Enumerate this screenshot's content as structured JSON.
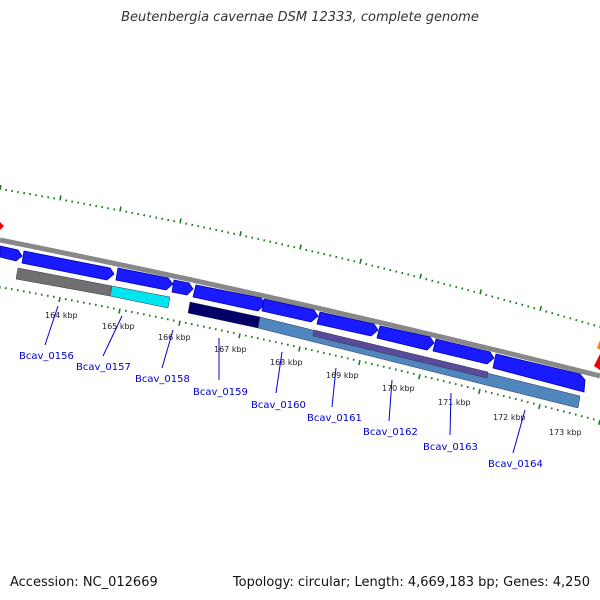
{
  "title": "Beutenbergia cavernae DSM 12333, complete genome",
  "footer": {
    "accession": "Accession: NC_012669",
    "summary": "Topology: circular; Length: 4,669,183 bp; Genes: 4,250"
  },
  "colors": {
    "backbone": "#888888",
    "forward_gene": "#1a1aff",
    "forward_gene_dark": "#0000b0",
    "tick": "#1e7a1e",
    "label": "#0000cc",
    "orf_gray": "#707070",
    "orf_cyan": "#00e5ee",
    "orf_navy": "#000066",
    "orf_steel": "#4f86bd",
    "orf_purple": "#5a4a9a",
    "edge_red": "#ee0000",
    "edge_orange": "#ff8800"
  },
  "scale_labels": [
    "164 kbp",
    "165 kbp",
    "166 kbp",
    "167 kbp",
    "168 kbp",
    "169 kbp",
    "170 kbp",
    "171 kbp",
    "172 kbp",
    "173 kbp"
  ],
  "gene_labels": [
    "Bcav_0156",
    "Bcav_0157",
    "Bcav_0158",
    "Bcav_0159",
    "Bcav_0160",
    "Bcav_0161",
    "Bcav_0162",
    "Bcav_0163",
    "Bcav_0164"
  ]
}
